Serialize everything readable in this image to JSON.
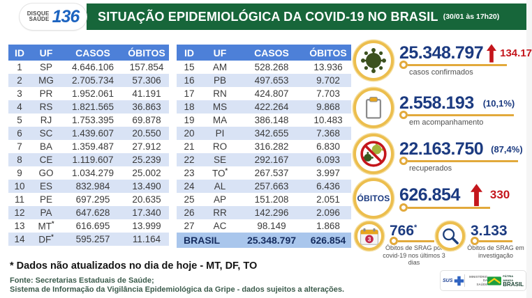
{
  "header": {
    "logo": {
      "top": "DISQUE",
      "bottom": "SAÚDE",
      "number": "136"
    },
    "title": "SITUAÇÃO EPIDEMIOLÓGICA DA COVID-19 NO BRASIL",
    "timestamp": "(30/01 às 17h20)"
  },
  "table": {
    "columns": {
      "id": "ID",
      "uf": "UF",
      "casos": "CASOS",
      "obitos": "ÓBITOS"
    },
    "left_rows": [
      {
        "id": "1",
        "uf": "SP",
        "casos": "4.646.106",
        "obitos": "157.854"
      },
      {
        "id": "2",
        "uf": "MG",
        "casos": "2.705.734",
        "obitos": "57.306"
      },
      {
        "id": "3",
        "uf": "PR",
        "casos": "1.952.061",
        "obitos": "41.191"
      },
      {
        "id": "4",
        "uf": "RS",
        "casos": "1.821.565",
        "obitos": "36.863"
      },
      {
        "id": "5",
        "uf": "RJ",
        "casos": "1.753.395",
        "obitos": "69.878"
      },
      {
        "id": "6",
        "uf": "SC",
        "casos": "1.439.607",
        "obitos": "20.550"
      },
      {
        "id": "7",
        "uf": "BA",
        "casos": "1.359.487",
        "obitos": "27.912"
      },
      {
        "id": "8",
        "uf": "CE",
        "casos": "1.119.607",
        "obitos": "25.239"
      },
      {
        "id": "9",
        "uf": "GO",
        "casos": "1.034.279",
        "obitos": "25.002"
      },
      {
        "id": "10",
        "uf": "ES",
        "casos": "832.984",
        "obitos": "13.490"
      },
      {
        "id": "11",
        "uf": "PE",
        "casos": "697.295",
        "obitos": "20.635"
      },
      {
        "id": "12",
        "uf": "PA",
        "casos": "647.628",
        "obitos": "17.340"
      },
      {
        "id": "13",
        "uf": "MT",
        "star": true,
        "casos": "616.695",
        "obitos": "13.999"
      },
      {
        "id": "14",
        "uf": "DF",
        "star": true,
        "casos": "595.257",
        "obitos": "11.164"
      }
    ],
    "right_rows": [
      {
        "id": "15",
        "uf": "AM",
        "casos": "528.268",
        "obitos": "13.936"
      },
      {
        "id": "16",
        "uf": "PB",
        "casos": "497.653",
        "obitos": "9.702"
      },
      {
        "id": "17",
        "uf": "RN",
        "casos": "424.807",
        "obitos": "7.703"
      },
      {
        "id": "18",
        "uf": "MS",
        "casos": "422.264",
        "obitos": "9.868"
      },
      {
        "id": "19",
        "uf": "MA",
        "casos": "386.148",
        "obitos": "10.483"
      },
      {
        "id": "20",
        "uf": "PI",
        "casos": "342.655",
        "obitos": "7.368"
      },
      {
        "id": "21",
        "uf": "RO",
        "casos": "316.282",
        "obitos": "6.830"
      },
      {
        "id": "22",
        "uf": "SE",
        "casos": "292.167",
        "obitos": "6.093"
      },
      {
        "id": "23",
        "uf": "TO",
        "star": true,
        "casos": "267.537",
        "obitos": "3.997"
      },
      {
        "id": "24",
        "uf": "AL",
        "casos": "257.663",
        "obitos": "6.436"
      },
      {
        "id": "25",
        "uf": "AP",
        "casos": "151.208",
        "obitos": "2.051"
      },
      {
        "id": "26",
        "uf": "RR",
        "casos": "142.296",
        "obitos": "2.096"
      },
      {
        "id": "27",
        "uf": "AC",
        "casos": "98.149",
        "obitos": "1.868"
      }
    ],
    "total": {
      "label": "BRASIL",
      "casos": "25.348.797",
      "obitos": "626.854"
    }
  },
  "stats": {
    "confirmed": {
      "icon": "virus-icon",
      "value": "25.348.797",
      "delta": "134.17",
      "label": "casos confirmados"
    },
    "monitoring": {
      "icon": "clipboard-icon",
      "value": "2.558.193",
      "percent": "(10,1%)",
      "label": "em acompanhamento"
    },
    "recovered": {
      "icon": "no-virus-icon",
      "value": "22.163.750",
      "percent": "(87,4%)",
      "label": "recuperados"
    },
    "deaths": {
      "badge": "ÓBITOS",
      "value": "626.854",
      "delta": "330"
    },
    "srag_deaths": {
      "icon": "calendar-icon",
      "calendar_badge": "3",
      "value": "766",
      "star": "*",
      "label": "Óbitos de SRAG por covid-19 nos últimos 3 dias"
    },
    "srag_investigation": {
      "icon": "magnifier-icon",
      "value": "3.133",
      "label": "Óbitos de SRAG em investigação"
    }
  },
  "footnotes": {
    "note": "* Dados não atualizados no dia de hoje - MT, DF, TO",
    "source1": "Fonte: Secretarias Estaduais de Saúde;",
    "source2": "Sistema de Informação da Vigilância Epidemiológica da Gripe - dados sujeitos a alterações."
  },
  "logos": {
    "sus": "SUS",
    "ministry_line1": "MINISTÉRIO DA",
    "ministry_line2": "SAÚDE",
    "brasil_tagline": "PÁTRIA AMADA",
    "brasil": "BRASIL"
  },
  "colors": {
    "band_green": "#17663a",
    "table_header_blue": "#4d80d8",
    "row_stripe": "#d9e3f5",
    "total_row_blue": "#a9c6ec",
    "number_navy": "#1b3a80",
    "alert_red": "#c4161c",
    "ring_gold": "#ecbe4e"
  }
}
